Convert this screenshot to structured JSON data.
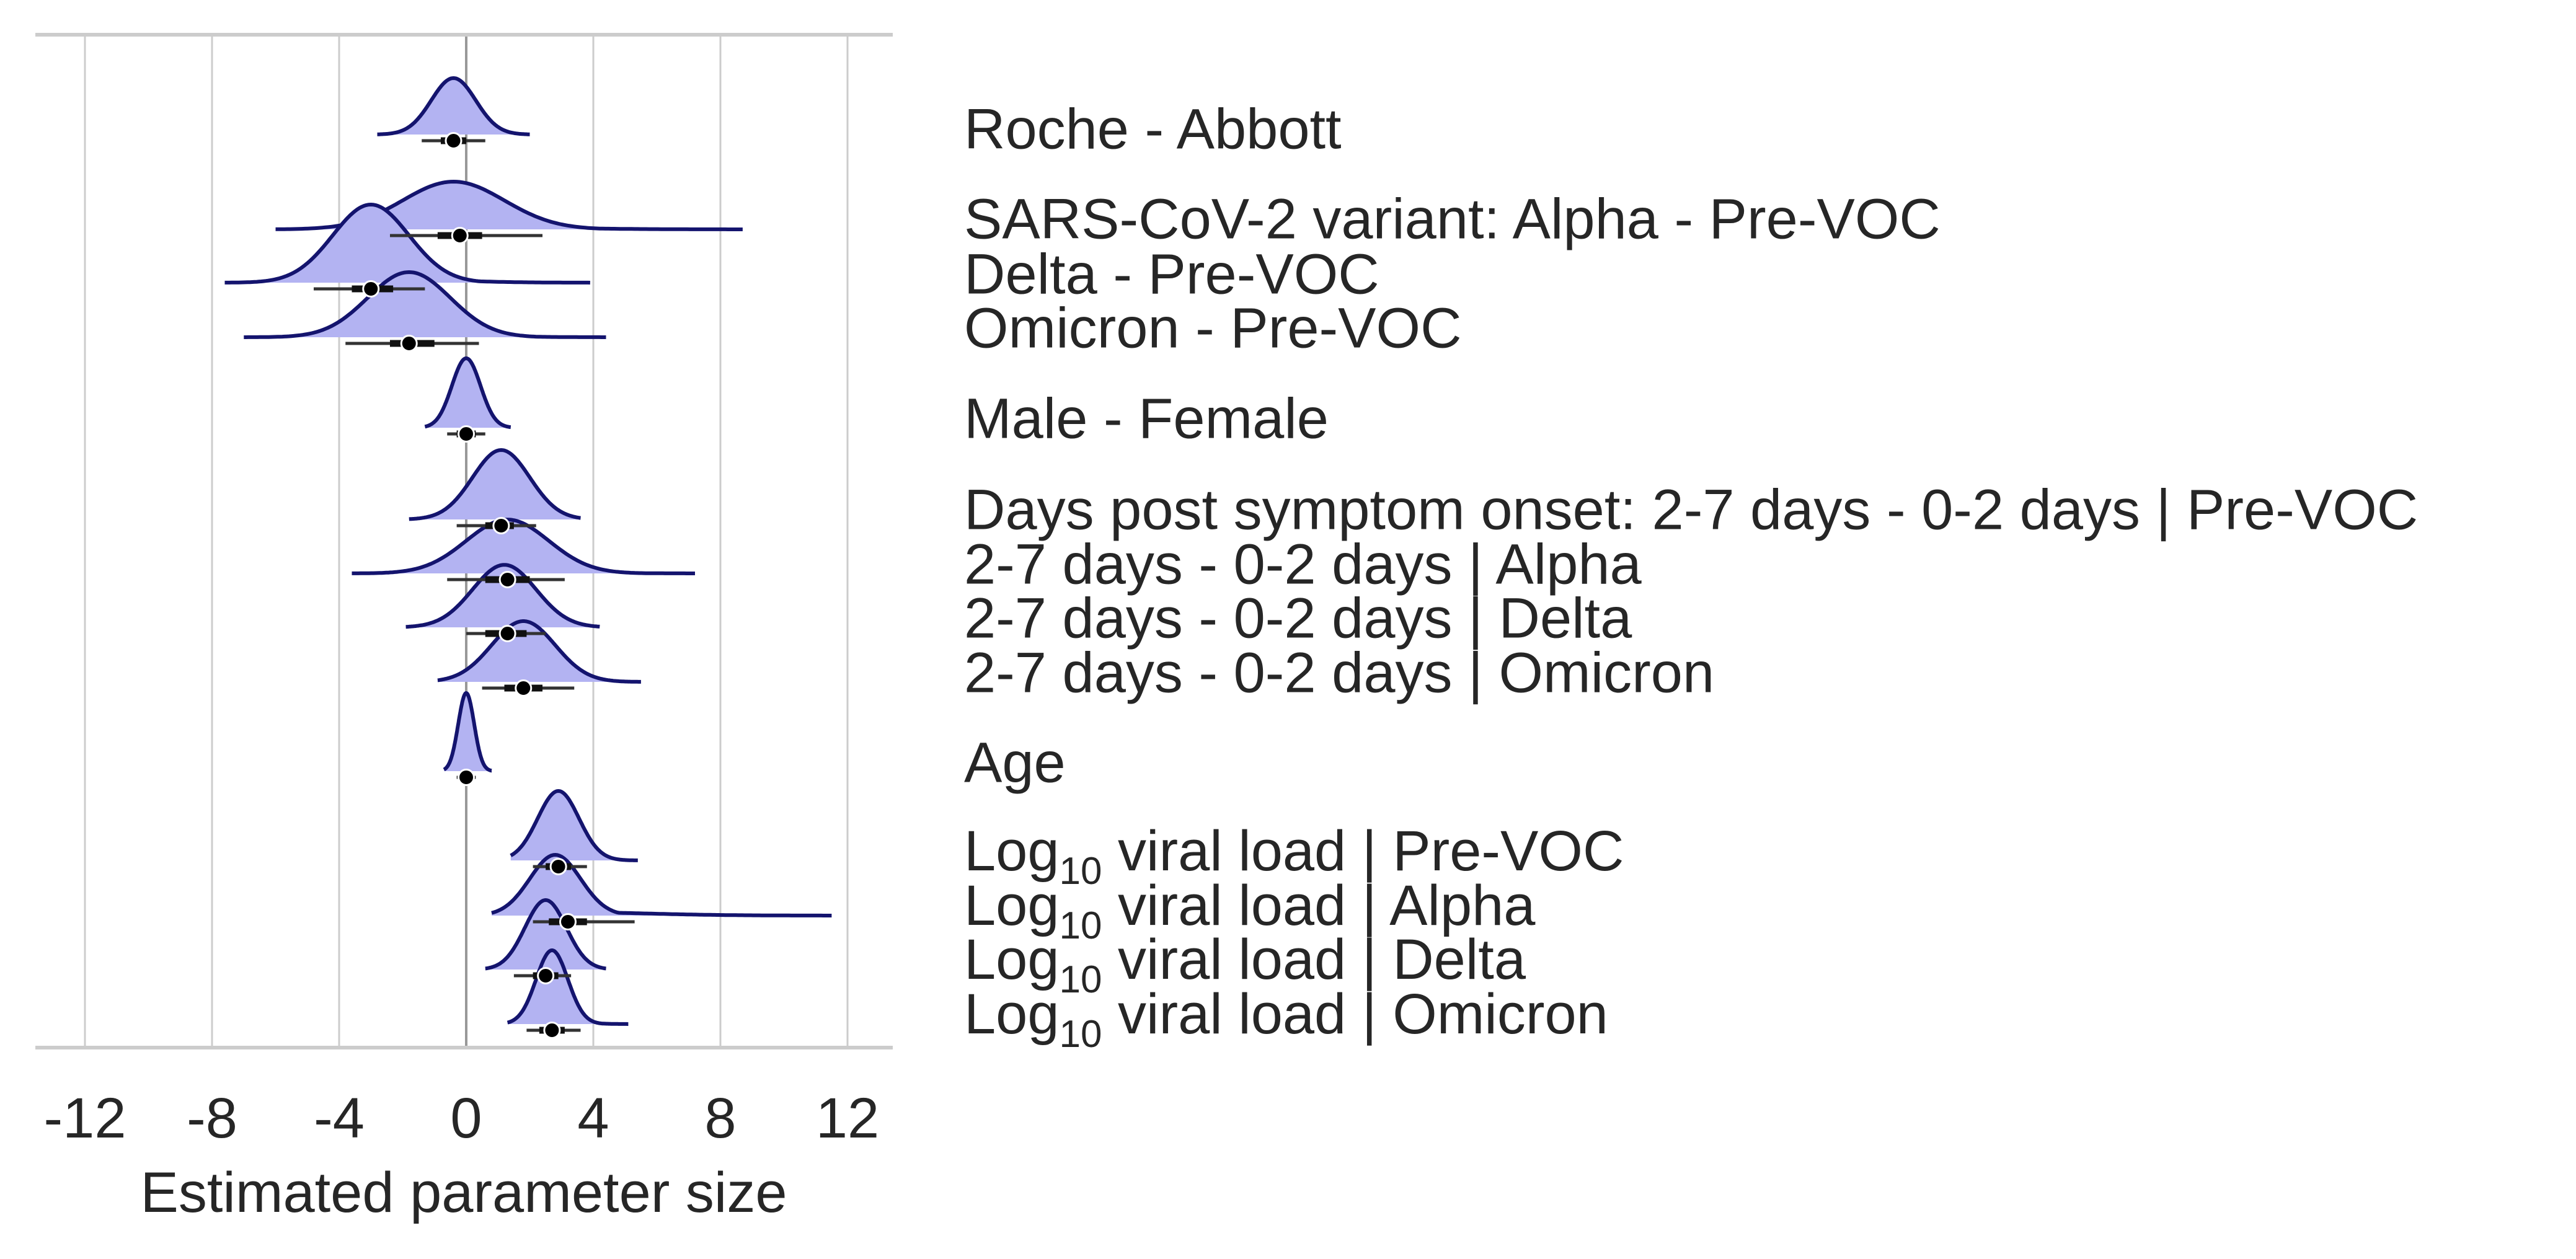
{
  "chart_data": {
    "type": "ridgeline-forest",
    "xlabel": "Estimated parameter size",
    "xlim": [
      -13.5,
      13.5
    ],
    "xticks": [
      -12,
      -8,
      -4,
      0,
      4,
      8,
      12
    ],
    "xtick_labels": [
      "-12",
      "-8",
      "-4",
      "0",
      "4",
      "8",
      "12"
    ],
    "grid": true,
    "reference_line": 0,
    "colors": {
      "fill": "#b3b3f2",
      "outline": "#14146e",
      "point": "#000000",
      "grid": "#cccccc",
      "zero": "#999999",
      "spine": "#cccccc"
    },
    "rows": [
      {
        "label": "Roche - Abbott",
        "median": -0.4,
        "mode": -0.4,
        "sd": 0.7,
        "tail_lo": -2.8,
        "tail_hi": 2.0,
        "peak": 0.65,
        "ci50": [
          -0.8,
          0.0
        ],
        "ci95": [
          -1.4,
          0.6
        ]
      },
      {
        "label": "SARS-CoV-2 variant: Alpha - Pre-VOC",
        "median": -0.2,
        "mode": -0.4,
        "sd": 1.6,
        "tail_lo": -6.0,
        "tail_hi": 8.7,
        "peak": 0.55,
        "ci50": [
          -0.9,
          0.5
        ],
        "ci95": [
          -2.4,
          2.4
        ]
      },
      {
        "label": "Delta - Pre-VOC",
        "median": -3.0,
        "mode": -3.0,
        "sd": 1.2,
        "tail_lo": -7.6,
        "tail_hi": 3.9,
        "peak": 0.9,
        "ci50": [
          -3.6,
          -2.3
        ],
        "ci95": [
          -4.8,
          -1.3
        ]
      },
      {
        "label": "Omicron - Pre-VOC",
        "median": -1.8,
        "mode": -1.8,
        "sd": 1.3,
        "tail_lo": -7.0,
        "tail_hi": 4.4,
        "peak": 0.75,
        "ci50": [
          -2.4,
          -1.0
        ],
        "ci95": [
          -3.8,
          0.4
        ]
      },
      {
        "label": "Male - Female",
        "median": 0.0,
        "mode": 0.0,
        "sd": 0.45,
        "tail_lo": -1.3,
        "tail_hi": 1.4,
        "peak": 0.8,
        "ci50": [
          -0.3,
          0.3
        ],
        "ci95": [
          -0.6,
          0.6
        ]
      },
      {
        "label": "Days post symptom onset: 2-7 days - 0-2 days | Pre-VOC",
        "median": 1.1,
        "mode": 1.1,
        "sd": 0.9,
        "tail_lo": -1.8,
        "tail_hi": 3.6,
        "peak": 0.8,
        "ci50": [
          0.6,
          1.5
        ],
        "ci95": [
          -0.3,
          2.2
        ]
      },
      {
        "label": "2-7 days - 0-2 days | Alpha",
        "median": 1.3,
        "mode": 1.3,
        "sd": 1.3,
        "tail_lo": -3.6,
        "tail_hi": 7.2,
        "peak": 0.62,
        "ci50": [
          0.6,
          2.0
        ],
        "ci95": [
          -0.6,
          3.1
        ]
      },
      {
        "label": "2-7 days - 0-2 days | Delta",
        "median": 1.3,
        "mode": 1.2,
        "sd": 1.0,
        "tail_lo": -1.9,
        "tail_hi": 4.2,
        "peak": 0.72,
        "ci50": [
          0.6,
          1.9
        ],
        "ci95": [
          0.0,
          2.5
        ]
      },
      {
        "label": "2-7 days - 0-2 days | Omicron",
        "median": 1.8,
        "mode": 1.8,
        "sd": 1.0,
        "tail_lo": -0.9,
        "tail_hi": 5.5,
        "peak": 0.7,
        "ci50": [
          1.2,
          2.4
        ],
        "ci95": [
          0.5,
          3.4
        ]
      },
      {
        "label": "Age",
        "median": 0.0,
        "mode": 0.0,
        "sd": 0.25,
        "tail_lo": -0.7,
        "tail_hi": 0.8,
        "peak": 0.9,
        "ci50": [
          -0.15,
          0.15
        ],
        "ci95": [
          -0.3,
          0.3
        ]
      },
      {
        "label": "Log|10| viral load | Pre-VOC",
        "median": 2.9,
        "mode": 2.9,
        "sd": 0.65,
        "tail_lo": 1.4,
        "tail_hi": 5.4,
        "peak": 0.8,
        "ci50": [
          2.5,
          3.3
        ],
        "ci95": [
          2.1,
          3.8
        ]
      },
      {
        "label": "Log|10| viral load | Alpha",
        "median": 3.2,
        "mode": 2.8,
        "sd": 0.8,
        "tail_lo": 0.8,
        "tail_hi": 11.5,
        "peak": 0.7,
        "ci50": [
          2.6,
          3.8
        ],
        "ci95": [
          2.1,
          5.3
        ]
      },
      {
        "label": "Log|10| viral load | Delta",
        "median": 2.5,
        "mode": 2.5,
        "sd": 0.65,
        "tail_lo": 0.6,
        "tail_hi": 4.4,
        "peak": 0.8,
        "ci50": [
          2.1,
          2.9
        ],
        "ci95": [
          1.5,
          3.3
        ]
      },
      {
        "label": "Log|10| viral load | Omicron",
        "median": 2.7,
        "mode": 2.7,
        "sd": 0.5,
        "tail_lo": 1.3,
        "tail_hi": 5.1,
        "peak": 0.85,
        "ci50": [
          2.3,
          3.1
        ],
        "ci95": [
          1.9,
          3.6
        ]
      }
    ]
  }
}
